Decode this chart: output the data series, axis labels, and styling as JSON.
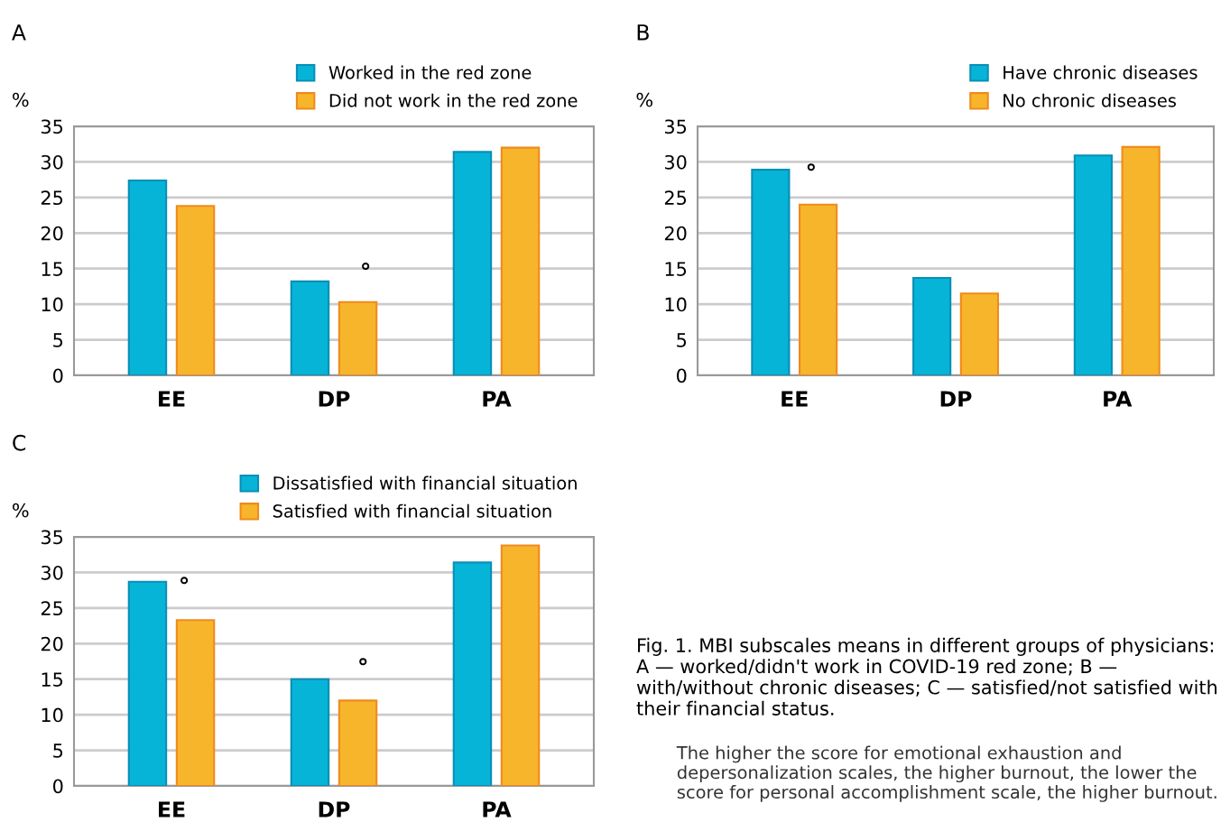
{
  "chart_data": [
    {
      "type": "bar",
      "title": "A",
      "ylabel": "%",
      "categories": [
        "EE",
        "DP",
        "PA"
      ],
      "ylim": [
        0,
        35
      ],
      "yticks": [
        0,
        5,
        10,
        15,
        20,
        25,
        30,
        35
      ],
      "grid": "y",
      "legend": "top right",
      "series": [
        {
          "name": "Worked in the red zone",
          "color": "#06b4d8",
          "values": [
            27.4,
            13.2,
            31.4
          ]
        },
        {
          "name": "Did not work in the red zone",
          "color": "#f7b52b",
          "values": [
            23.8,
            10.3,
            32.0
          ]
        }
      ],
      "annotations": [
        "°"
      ]
    },
    {
      "type": "bar",
      "title": "B",
      "ylabel": "%",
      "categories": [
        "EE",
        "DP",
        "PA"
      ],
      "ylim": [
        0,
        35
      ],
      "yticks": [
        0,
        5,
        10,
        15,
        20,
        25,
        30,
        35
      ],
      "grid": "y",
      "legend": "top right",
      "series": [
        {
          "name": "Have chronic diseases",
          "color": "#06b4d8",
          "values": [
            28.9,
            13.7,
            30.9
          ]
        },
        {
          "name": "No chronic diseases",
          "color": "#f7b52b",
          "values": [
            24.0,
            11.5,
            32.1
          ]
        }
      ],
      "annotations": [
        "°"
      ]
    },
    {
      "type": "bar",
      "title": "C",
      "ylabel": "%",
      "categories": [
        "EE",
        "DP",
        "PA"
      ],
      "ylim": [
        0,
        35
      ],
      "yticks": [
        0,
        5,
        10,
        15,
        20,
        25,
        30,
        35
      ],
      "grid": "y",
      "legend": "top right",
      "series": [
        {
          "name": "Dissatisfied with financial situation",
          "color": "#06b4d8",
          "values": [
            28.7,
            15.0,
            31.4
          ]
        },
        {
          "name": "Satisfied with financial situation",
          "color": "#f7b52b",
          "values": [
            23.3,
            12.0,
            33.8
          ]
        }
      ],
      "annotations": [
        "°",
        "°"
      ]
    },
    {
      "type": "other",
      "title": "Fig. 1. MBI subscales means in different groups of physicians: A — worked/didn't work in COVID-19 red zone; B — with/without chronic diseases; C — satisfied/not satisfied with their financial status.",
      "annotations": [
        "The higher the score for emotional exhaustion and depersonalization scales, the higher burnout, the lower the score for personal accomplishment scale, the higher burnout."
      ]
    }
  ]
}
